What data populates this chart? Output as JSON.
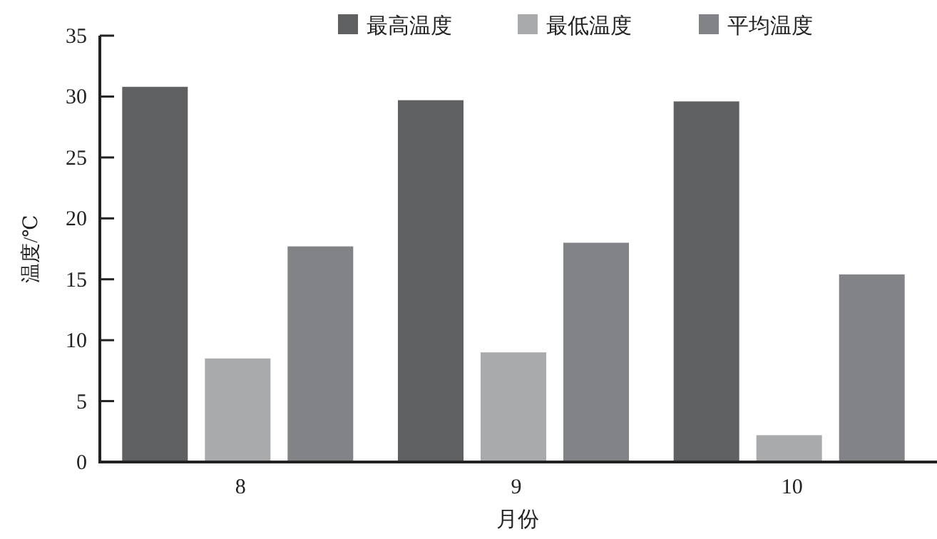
{
  "chart_data": {
    "type": "bar",
    "xlabel": "月份",
    "ylabel": "温度/℃",
    "categories": [
      "8",
      "9",
      "10"
    ],
    "series": [
      {
        "name": "最高温度",
        "color": "#5f6062",
        "values": [
          30.8,
          29.7,
          29.6
        ]
      },
      {
        "name": "最低温度",
        "color": "#a9aaac",
        "values": [
          8.5,
          9.0,
          2.2
        ]
      },
      {
        "name": "平均温度",
        "color": "#828386",
        "values": [
          17.7,
          18.0,
          15.4
        ]
      }
    ],
    "ylim": [
      0,
      35
    ],
    "yticks": [
      0,
      5,
      10,
      15,
      20,
      25,
      30,
      35
    ],
    "grid": false,
    "legend": "top"
  }
}
